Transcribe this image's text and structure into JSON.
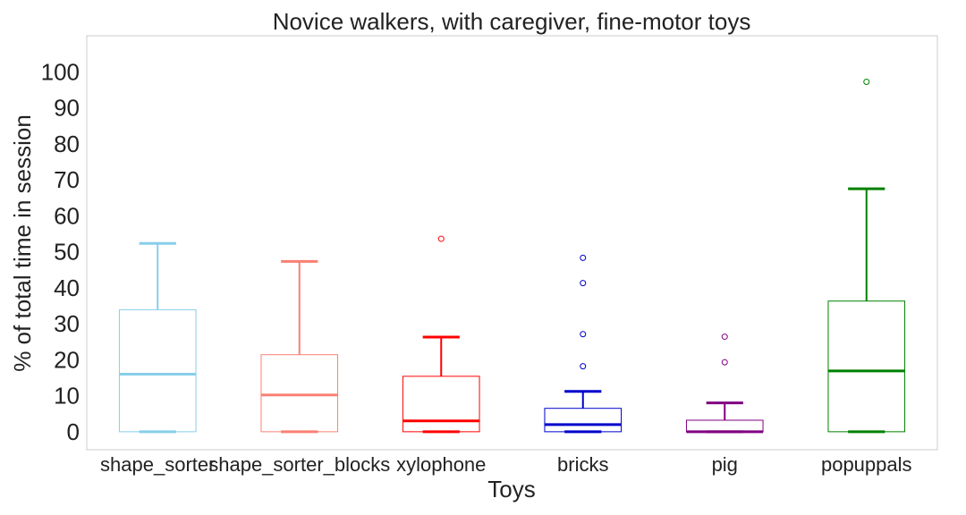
{
  "chart_data": {
    "type": "box",
    "title": "Novice walkers, with caregiver, fine-motor toys",
    "xlabel": "Toys",
    "ylabel": "% of total time in session",
    "ylim": [
      -5,
      110
    ],
    "yticks": [
      0,
      10,
      20,
      30,
      40,
      50,
      60,
      70,
      80,
      90,
      100
    ],
    "grid": false,
    "categories": [
      "shape_sorter",
      "shape_sorter_blocks",
      "xylophone",
      "bricks",
      "pig",
      "popuppals"
    ],
    "series": [
      {
        "category": "shape_sorter",
        "color": "#87ceeb",
        "min": 0,
        "q1": 0,
        "median": 16,
        "q3": 33.9,
        "max": 52.3,
        "outliers": []
      },
      {
        "category": "shape_sorter_blocks",
        "color": "#fa8072",
        "min": 0,
        "q1": 0,
        "median": 10.2,
        "q3": 21.4,
        "max": 47.3,
        "outliers": []
      },
      {
        "category": "xylophone",
        "color": "#ff0000",
        "min": 0,
        "q1": 0,
        "median": 3,
        "q3": 15.4,
        "max": 26.3,
        "outliers": [
          53.6
        ]
      },
      {
        "category": "bricks",
        "color": "#0000cd",
        "min": 0,
        "q1": 0,
        "median": 2,
        "q3": 6.5,
        "max": 11.2,
        "outliers": [
          18.2,
          27.1,
          41.3,
          48.3
        ]
      },
      {
        "category": "pig",
        "color": "#800080",
        "min": 0,
        "q1": 0,
        "median": 0,
        "q3": 3.2,
        "max": 8,
        "outliers": [
          19.3,
          26.4
        ]
      },
      {
        "category": "popuppals",
        "color": "#008000",
        "min": 0,
        "q1": 0,
        "median": 16.9,
        "q3": 36.3,
        "max": 67.5,
        "outliers": [
          97.2
        ]
      }
    ]
  }
}
